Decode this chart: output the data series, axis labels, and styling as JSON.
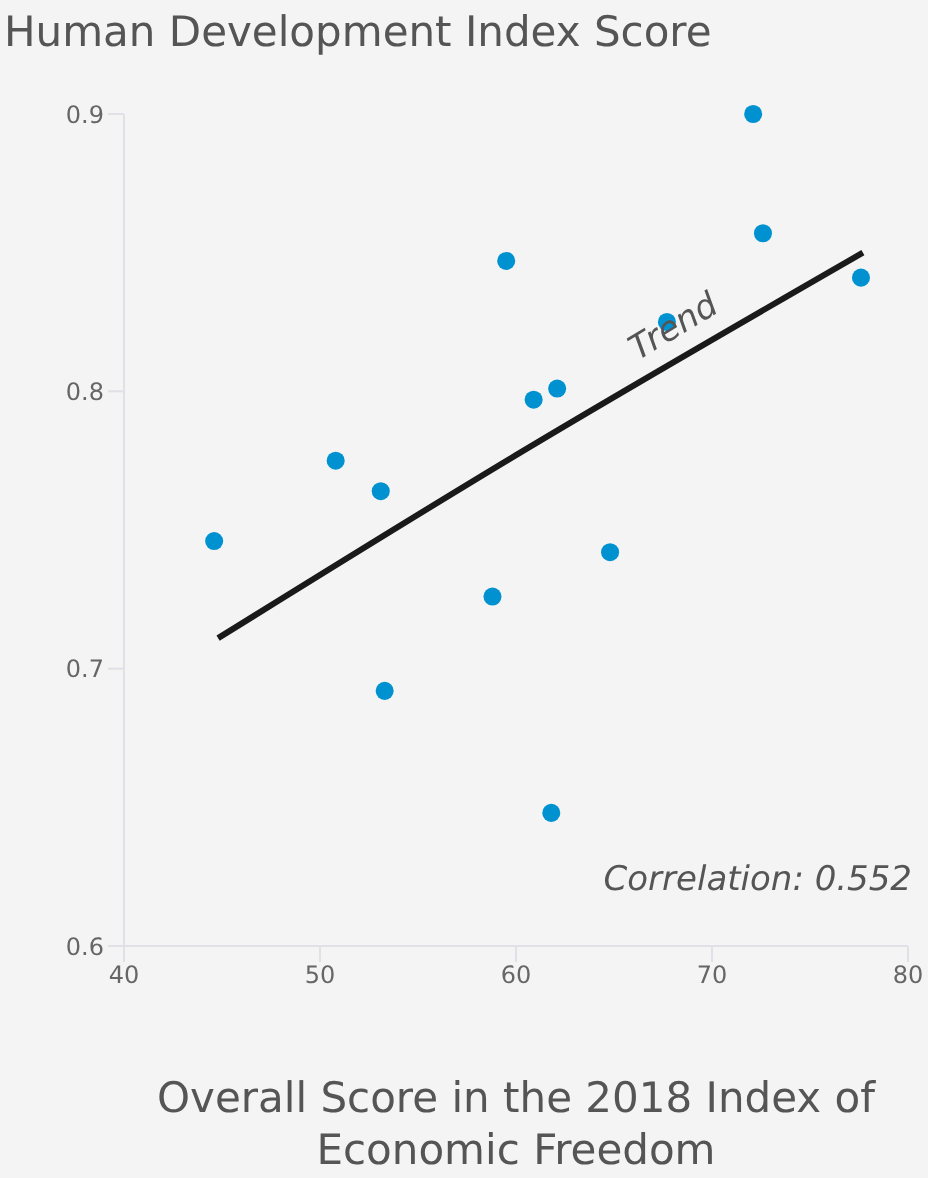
{
  "chart_data": {
    "type": "scatter",
    "ylabel": "Human Development Index Score",
    "xlabel": "Overall Score in the 2018 Index of Economic Freedom",
    "xlim": [
      40,
      80
    ],
    "xticks": [
      40,
      50,
      60,
      70,
      80
    ],
    "ylim": [
      0.6,
      0.9
    ],
    "yticks": [
      0.6,
      0.7,
      0.8,
      0.9
    ],
    "grid": false,
    "marker": "circle",
    "legend": false,
    "series": [
      {
        "color": "#0091d0",
        "x": [
          44.6,
          50.8,
          53.1,
          53.3,
          58.8,
          59.5,
          60.9,
          62.1,
          61.8,
          64.8,
          67.7,
          72.1,
          72.6,
          77.6
        ],
        "values": [
          0.746,
          0.775,
          0.764,
          0.692,
          0.726,
          0.847,
          0.797,
          0.801,
          0.648,
          0.742,
          0.825,
          0.9,
          0.857,
          0.841
        ]
      },
      {
        "type": "line",
        "name": "Trend",
        "color": "#1a1a1a",
        "line_style": "solid",
        "marker": "none",
        "x": [
          44.8,
          60,
          77.7
        ],
        "values": [
          0.711,
          0.777,
          0.85
        ]
      }
    ],
    "annotations": [
      "Correlation: 0.552"
    ]
  }
}
